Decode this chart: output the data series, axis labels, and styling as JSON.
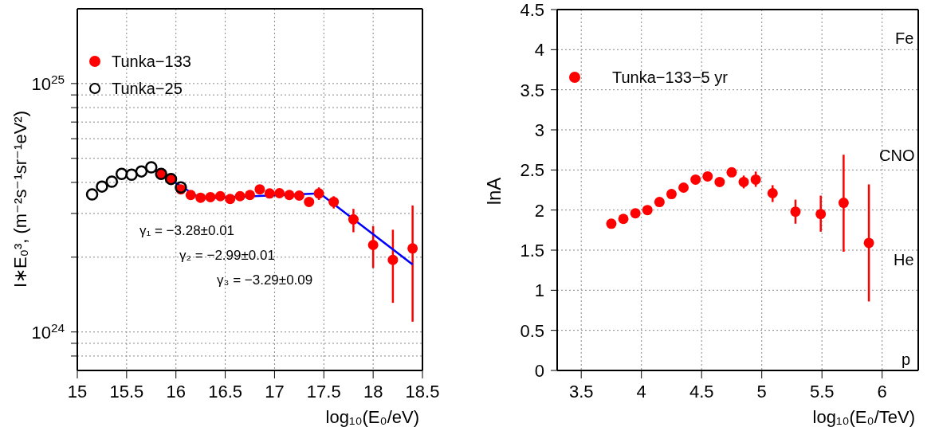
{
  "chart_data": [
    {
      "type": "scatter",
      "xlabel": "log₁₀(E₀/eV)",
      "ylabel": "I∗E₀³, (m⁻²s⁻¹sr⁻¹eV²)",
      "log": "y",
      "grid": true,
      "legend": "top left",
      "xlim": [
        15,
        18.5
      ],
      "xticks": [
        15,
        15.5,
        16,
        16.5,
        17,
        17.5,
        18,
        18.5
      ],
      "ylim": [
        7e+23,
        2e+25
      ],
      "yticks": [
        {
          "value": 8e+23,
          "label": null
        },
        {
          "value": 9e+23,
          "label": null
        },
        {
          "value": 1e+24,
          "label": "10$^{24}$"
        },
        {
          "value": 2e+24,
          "label": null
        },
        {
          "value": 3e+24,
          "label": null
        },
        {
          "value": 4e+24,
          "label": null
        },
        {
          "value": 5e+24,
          "label": null
        },
        {
          "value": 6e+24,
          "label": null
        },
        {
          "value": 7e+24,
          "label": null
        },
        {
          "value": 8e+24,
          "label": null
        },
        {
          "value": 9e+24,
          "label": null
        },
        {
          "value": 1e+25,
          "label": "10$^{25}$"
        }
      ],
      "series": [
        {
          "name": "Tunka−133",
          "color": "#ff0000",
          "marker": "circle",
          "x": [
            15.85,
            15.95,
            16.05,
            16.15,
            16.25,
            16.35,
            16.45,
            16.55,
            16.65,
            16.75,
            16.85,
            16.95,
            17.05,
            17.15,
            17.25,
            17.35,
            17.45,
            17.6,
            17.8,
            18.0,
            18.2,
            18.4
          ],
          "values": [
            4.33e+24,
            4.15e+24,
            3.75e+24,
            3.56e+24,
            3.47e+24,
            3.49e+24,
            3.52e+24,
            3.43e+24,
            3.52e+24,
            3.56e+24,
            3.75e+24,
            3.61e+24,
            3.62e+24,
            3.56e+24,
            3.54e+24,
            3.34e+24,
            3.61e+24,
            3.34e+24,
            2.84e+24,
            2.24e+24,
            1.95e+24,
            2.17e+24
          ],
          "errors": [
            null,
            null,
            null,
            null,
            null,
            null,
            null,
            null,
            null,
            null,
            null,
            null,
            null,
            null,
            null,
            [
              3.2e+24,
              3.48e+24
            ],
            [
              3.4e+24,
              3.82e+24
            ],
            [
              3.14e+24,
              3.52e+24
            ],
            [
              2.52e+24,
              3.13e+24
            ],
            [
              1.81e+24,
              2.67e+24
            ],
            [
              1.31e+24,
              2.58e+24
            ],
            [
              1.1e+24,
              3.23e+24
            ]
          ]
        },
        {
          "name": "Tunka−25",
          "color": "#000000",
          "marker": "circle",
          "x": [
            15.15,
            15.25,
            15.35,
            15.45,
            15.55,
            15.65,
            15.75,
            15.85,
            15.95,
            16.05
          ],
          "values": [
            3.58e+24,
            3.85e+24,
            4.03e+24,
            4.33e+24,
            4.3e+24,
            4.43e+24,
            4.6e+24,
            4.33e+24,
            4.13e+24,
            3.82e+24
          ]
        },
        {
          "type": "line",
          "color": "#0000ff",
          "x": [
            15.85,
            16.25,
            17.46,
            18.4
          ],
          "values": [
            4.33e+24,
            3.45e+24,
            3.61e+24,
            1.87e+24
          ]
        }
      ],
      "annotations": [
        "γ₁ = −3.28±0.01",
        "γ₂ = −2.99±0.01",
        "γ₃ = −3.29±0.09"
      ]
    },
    {
      "type": "scatter",
      "xlabel": "log₁₀(E₀/TeV)",
      "ylabel": "lnA",
      "grid": true,
      "legend": "top left",
      "xlim": [
        3.3,
        6.3
      ],
      "xticks": [
        3.5,
        4,
        4.5,
        5,
        5.5,
        6
      ],
      "ylim": [
        0,
        4.5
      ],
      "yticks": [
        0,
        0.5,
        1,
        1.5,
        2,
        2.5,
        3,
        3.5,
        4,
        4.5
      ],
      "series": [
        {
          "name": "Tunka−133−5 yr",
          "color": "#ff0000",
          "marker": "circle",
          "x": [
            3.75,
            3.85,
            3.95,
            4.05,
            4.15,
            4.25,
            4.35,
            4.45,
            4.55,
            4.65,
            4.75,
            4.85,
            4.95,
            5.09,
            5.28,
            5.49,
            5.68,
            5.89
          ],
          "values": [
            1.83,
            1.89,
            1.96,
            2.0,
            2.1,
            2.2,
            2.28,
            2.38,
            2.42,
            2.35,
            2.47,
            2.35,
            2.38,
            2.21,
            1.98,
            1.95,
            2.09,
            1.59
          ],
          "errors": [
            null,
            null,
            null,
            null,
            null,
            null,
            null,
            null,
            null,
            null,
            null,
            [
              2.27,
              2.43
            ],
            [
              2.29,
              2.48
            ],
            [
              2.1,
              2.31
            ],
            [
              1.83,
              2.13
            ],
            [
              1.73,
              2.18
            ],
            [
              1.48,
              2.69
            ],
            [
              0.86,
              2.32
            ]
          ]
        }
      ],
      "annotations": [
        "Fe",
        "CNO",
        "He",
        "p"
      ]
    }
  ]
}
